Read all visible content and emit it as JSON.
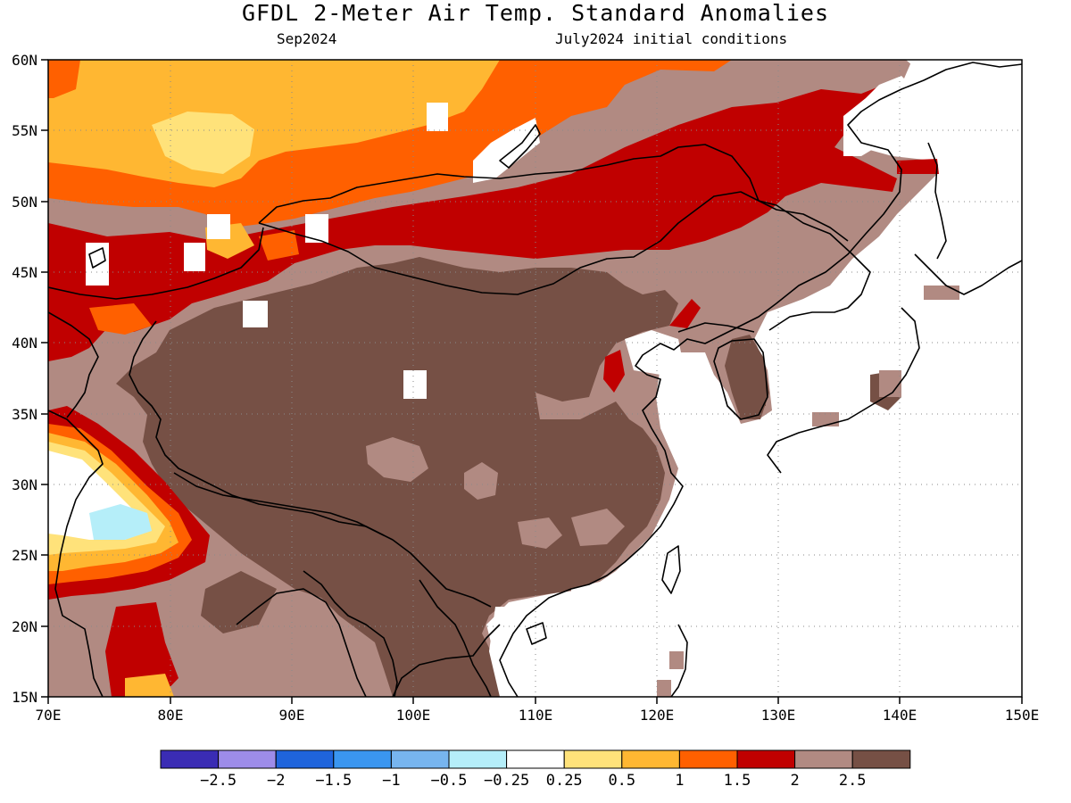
{
  "header": {
    "title": "GFDL 2-Meter Air Temp. Standard Anomalies",
    "valid_month": "Sep2024",
    "init": "July2024 initial conditions"
  },
  "map": {
    "extent": {
      "lon_min": 70,
      "lon_max": 150,
      "lat_min": 15,
      "lat_max": 60
    },
    "lon_ticks": [
      "70E",
      "80E",
      "90E",
      "100E",
      "110E",
      "120E",
      "130E",
      "140E",
      "150E"
    ],
    "lat_ticks": [
      "15N",
      "20N",
      "25N",
      "30N",
      "35N",
      "40N",
      "45N",
      "50N",
      "55N",
      "60N"
    ],
    "grid": true,
    "colors": {
      "land_dark_brown": "#765045",
      "land_light_brown": "#b18a82",
      "red": "#c00000",
      "orange_red": "#ff6000",
      "orange": "#ffb732",
      "light_yellow": "#ffe27a",
      "white": "#ffffff",
      "light_blue": "#b5eef9"
    }
  },
  "colorbar": {
    "colors": [
      "#3a2cb4",
      "#9d8ce9",
      "#1f64dc",
      "#3a96f0",
      "#77b5ef",
      "#b5eef9",
      "#ffffff",
      "#ffe27a",
      "#ffb732",
      "#ff6000",
      "#c00000",
      "#b18a82",
      "#765045"
    ],
    "labels": [
      "-2.5",
      "-2",
      "-1.5",
      "-1",
      "-0.5",
      "-0.25",
      "0.25",
      "0.5",
      "1",
      "1.5",
      "2",
      "2.5"
    ]
  }
}
